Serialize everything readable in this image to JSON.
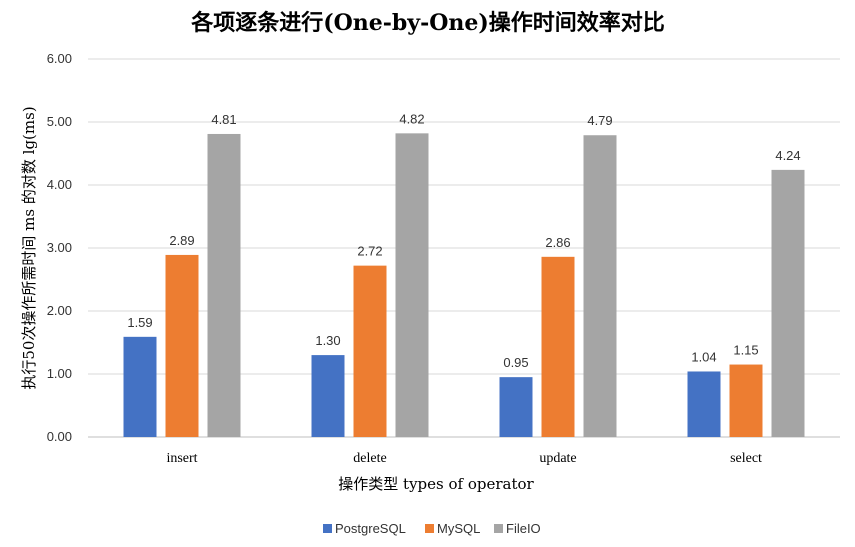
{
  "chart_data": {
    "type": "bar",
    "title": "各项逐条进行(One-by-One)操作时间效率对比",
    "xlabel": "操作类型 types of operator",
    "ylabel": "执行50次操作所需时间 ms 的对数 lg(ms)",
    "categories": [
      "insert",
      "delete",
      "update",
      "select"
    ],
    "ylim": [
      0,
      6
    ],
    "yticks": [
      "0.00",
      "1.00",
      "2.00",
      "3.00",
      "4.00",
      "5.00",
      "6.00"
    ],
    "grid": true,
    "legend_position": "bottom",
    "series": [
      {
        "name": "PostgreSQL",
        "color": "#4472c4",
        "values": [
          1.59,
          1.3,
          0.95,
          1.04
        ],
        "labels": [
          "1.59",
          "1.30",
          "0.95",
          "1.04"
        ]
      },
      {
        "name": "MySQL",
        "color": "#ed7d31",
        "values": [
          2.89,
          2.72,
          2.86,
          1.15
        ],
        "labels": [
          "2.89",
          "2.72",
          "2.86",
          "1.15"
        ]
      },
      {
        "name": "FileIO",
        "color": "#a5a5a5",
        "values": [
          4.81,
          4.82,
          4.79,
          4.24
        ],
        "labels": [
          "4.81",
          "4.82",
          "4.79",
          "4.24"
        ]
      }
    ]
  }
}
